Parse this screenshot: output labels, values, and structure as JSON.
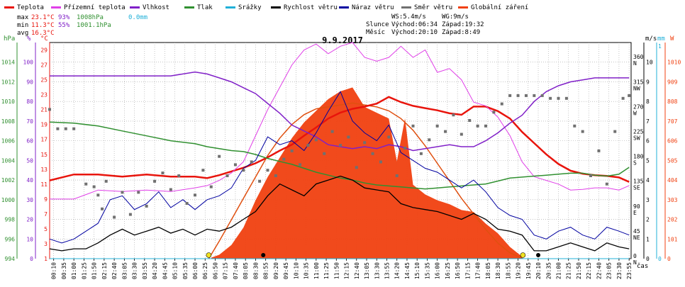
{
  "legend": [
    {
      "label": "Teplota",
      "color": "#e8140c"
    },
    {
      "label": "Přízemní teplota",
      "color": "#e040e8"
    },
    {
      "label": "Vlhkost",
      "color": "#8020c8"
    },
    {
      "label": "Tlak",
      "color": "#309030"
    },
    {
      "label": "Srážky",
      "color": "#20b0d8"
    },
    {
      "label": "Rychlost větru",
      "color": "#000000"
    },
    {
      "label": "Náraz větru",
      "color": "#0000a0"
    },
    {
      "label": "Směr větru",
      "color": "#707070"
    },
    {
      "label": "Globální záření",
      "color": "#f04010"
    }
  ],
  "stats": {
    "max": {
      "label": "max",
      "temp": "23.1°C",
      "hum": "93%",
      "press": "1008hPa",
      "rain": "0.0mm"
    },
    "min": {
      "label": "min",
      "temp": "11.3°C",
      "hum": "55%",
      "press": "1001.1hPa"
    },
    "avg": {
      "label": "avg",
      "temp": "16.3°C"
    }
  },
  "wind_info": {
    "ws": "WS:5.4m/s",
    "wg": "WG:9m/s"
  },
  "sun_info": {
    "label": "Slunce",
    "rise": "Východ:06:34",
    "set": "Západ:19:32"
  },
  "moon_info": {
    "label": "Měsíc",
    "rise": "Východ:20:10",
    "set": "Západ:8:49"
  },
  "colors": {
    "temp": "#e8140c",
    "ground": "#e040e8",
    "hum": "#8020c8",
    "press": "#309030",
    "rain": "#20b0d8",
    "wind": "#000000",
    "gust": "#0000a0",
    "dir": "#707070",
    "rad": "#f04010",
    "clearsky": "#e05010",
    "grid": "#a0a0a0",
    "sun_marker": "#f0e020",
    "moon_marker": "#000000"
  },
  "chart_data": {
    "type": "line",
    "title": "9.9.2017",
    "xlabel": "čas",
    "x_ticks": [
      "00:10",
      "00:35",
      "01:00",
      "01:25",
      "01:50",
      "02:15",
      "02:40",
      "03:05",
      "03:30",
      "03:55",
      "04:20",
      "04:45",
      "05:10",
      "05:35",
      "06:00",
      "06:25",
      "06:50",
      "07:15",
      "07:40",
      "08:05",
      "08:30",
      "08:55",
      "09:20",
      "09:45",
      "10:10",
      "10:35",
      "11:00",
      "11:25",
      "11:50",
      "12:15",
      "12:40",
      "13:05",
      "13:30",
      "13:55",
      "14:20",
      "14:45",
      "15:10",
      "15:35",
      "16:00",
      "16:25",
      "16:50",
      "17:15",
      "17:40",
      "18:05",
      "18:30",
      "18:55",
      "19:20",
      "19:45",
      "20:10",
      "20:35",
      "21:00",
      "21:25",
      "21:50",
      "22:15",
      "22:40",
      "23:05",
      "23:30",
      "23:55"
    ],
    "axes": {
      "pressure": {
        "label": "hPa",
        "ticks": [
          "994",
          "996",
          "998",
          "1000",
          "1002",
          "1004",
          "1006",
          "1008",
          "1010",
          "1012",
          "1014"
        ],
        "range": [
          994,
          1016
        ]
      },
      "humidity": {
        "label": "%",
        "ticks": [
          "0",
          "10",
          "20",
          "30",
          "40",
          "50",
          "60",
          "70",
          "80",
          "90",
          "100"
        ],
        "range": [
          0,
          110
        ]
      },
      "temperature": {
        "label": "°C",
        "ticks": [
          "1",
          "3",
          "5",
          "7",
          "9",
          "11",
          "13",
          "15",
          "17",
          "19",
          "21",
          "23",
          "25",
          "27",
          "29"
        ],
        "range": [
          1,
          30
        ]
      },
      "direction": {
        "label": "°",
        "ticks": [
          "0",
          "45",
          "90",
          "135",
          "180",
          "225",
          "270",
          "315",
          "360"
        ],
        "directions": [
          "N",
          "NE",
          "E",
          "SE",
          "S",
          "SW",
          "W",
          "NW",
          "N"
        ]
      },
      "wind": {
        "label": "m/s",
        "ticks": [
          "0",
          "1",
          "2",
          "3",
          "4",
          "5",
          "6",
          "7",
          "8",
          "9",
          "10"
        ]
      },
      "rain": {
        "label": "mm",
        "ticks": [
          "0",
          "1"
        ]
      },
      "radiation": {
        "label": "W",
        "ticks": [
          "0",
          "101",
          "202",
          "303",
          "404",
          "505",
          "606",
          "707",
          "808",
          "909",
          "1010"
        ]
      }
    },
    "sun_markers": [
      "06:34",
      "19:32"
    ],
    "moon_markers": [
      "08:49",
      "20:10"
    ],
    "series": [
      {
        "name": "Teplota",
        "axis": "temperature",
        "x": [
          "00:00",
          "01:00",
          "02:00",
          "03:00",
          "04:00",
          "05:00",
          "06:00",
          "06:30",
          "07:00",
          "07:30",
          "08:00",
          "08:30",
          "09:00",
          "09:30",
          "10:00",
          "10:30",
          "11:00",
          "11:30",
          "12:00",
          "12:30",
          "13:00",
          "13:30",
          "14:00",
          "14:30",
          "15:00",
          "15:30",
          "16:00",
          "16:30",
          "17:00",
          "17:30",
          "18:00",
          "18:30",
          "19:00",
          "19:30",
          "20:00",
          "20:30",
          "21:00",
          "21:30",
          "22:00",
          "22:30",
          "23:00",
          "23:30",
          "23:55"
        ],
        "y": [
          11.5,
          12.3,
          12.3,
          12.0,
          12.3,
          12.0,
          12.0,
          11.8,
          12.2,
          12.7,
          13.2,
          13.8,
          14.6,
          15.5,
          16.3,
          17.5,
          18.6,
          19.8,
          20.6,
          21.1,
          21.4,
          21.8,
          22.7,
          22.0,
          21.5,
          21.2,
          20.9,
          20.5,
          20.3,
          21.4,
          21.4,
          20.8,
          19.8,
          18.0,
          16.5,
          15.0,
          13.7,
          12.8,
          12.4,
          12.2,
          12.1,
          11.9,
          11.3
        ]
      },
      {
        "name": "Přízemní teplota",
        "axis": "temperature",
        "x": [
          "00:00",
          "01:00",
          "02:00",
          "03:00",
          "04:00",
          "05:00",
          "06:00",
          "06:30",
          "07:00",
          "07:30",
          "08:00",
          "08:30",
          "09:00",
          "09:30",
          "10:00",
          "10:30",
          "11:00",
          "11:30",
          "12:00",
          "12:30",
          "13:00",
          "13:30",
          "14:00",
          "14:30",
          "15:00",
          "15:30",
          "16:00",
          "16:30",
          "17:00",
          "17:30",
          "18:00",
          "18:30",
          "19:00",
          "19:30",
          "20:00",
          "20:30",
          "21:00",
          "21:30",
          "22:00",
          "22:30",
          "23:00",
          "23:30",
          "23:55"
        ],
        "y": [
          9.0,
          9.0,
          10.2,
          10.0,
          10.2,
          10.0,
          10.5,
          10.8,
          11.5,
          12.5,
          14.0,
          17.5,
          21.0,
          24.0,
          27.0,
          29.0,
          29.8,
          28.5,
          29.5,
          30.0,
          28.0,
          27.5,
          28.0,
          29.5,
          28.0,
          29.0,
          26.0,
          26.5,
          25.0,
          22.0,
          21.5,
          20.0,
          17.5,
          14.0,
          12.0,
          11.5,
          11.0,
          10.2,
          10.3,
          10.5,
          10.5,
          10.2,
          10.8
        ]
      },
      {
        "name": "Vlhkost",
        "axis": "humidity",
        "x": [
          "00:00",
          "01:00",
          "02:00",
          "03:00",
          "04:00",
          "05:00",
          "06:00",
          "06:30",
          "07:00",
          "07:30",
          "08:00",
          "08:30",
          "09:00",
          "09:30",
          "10:00",
          "10:30",
          "11:00",
          "11:30",
          "12:00",
          "12:30",
          "13:00",
          "13:30",
          "14:00",
          "14:30",
          "15:00",
          "15:30",
          "16:00",
          "16:30",
          "17:00",
          "17:30",
          "18:00",
          "18:30",
          "19:00",
          "19:30",
          "20:00",
          "20:30",
          "21:00",
          "21:30",
          "22:00",
          "22:30",
          "23:00",
          "23:30",
          "23:55"
        ],
        "y": [
          93,
          93,
          93,
          93,
          93,
          93,
          95,
          94,
          92,
          90,
          87,
          84,
          79,
          74,
          68,
          65,
          62,
          58,
          57,
          56,
          57,
          56,
          58,
          57,
          55,
          56,
          57,
          58,
          57,
          57,
          60,
          64,
          69,
          73,
          80,
          85,
          88,
          90,
          91,
          92,
          92,
          92,
          92
        ]
      },
      {
        "name": "Tlak",
        "axis": "pressure",
        "x": [
          "00:00",
          "01:00",
          "02:00",
          "03:00",
          "04:00",
          "05:00",
          "06:00",
          "06:30",
          "07:00",
          "07:30",
          "08:00",
          "08:30",
          "09:00",
          "09:30",
          "10:00",
          "10:30",
          "11:00",
          "11:30",
          "12:00",
          "12:30",
          "13:00",
          "13:30",
          "14:00",
          "14:30",
          "15:00",
          "15:30",
          "16:00",
          "16:30",
          "17:00",
          "17:30",
          "18:00",
          "18:30",
          "19:00",
          "19:30",
          "20:00",
          "20:30",
          "21:00",
          "21:30",
          "22:00",
          "22:30",
          "23:00",
          "23:30",
          "23:55"
        ],
        "y": [
          1007.9,
          1007.8,
          1007.5,
          1007.0,
          1006.5,
          1006.0,
          1005.7,
          1005.4,
          1005.2,
          1005.0,
          1004.9,
          1004.6,
          1004.2,
          1003.9,
          1003.6,
          1003.2,
          1002.8,
          1002.5,
          1002.2,
          1002.0,
          1001.7,
          1001.5,
          1001.4,
          1001.3,
          1001.2,
          1001.1,
          1001.2,
          1001.3,
          1001.4,
          1001.5,
          1001.6,
          1001.9,
          1002.2,
          1002.3,
          1002.4,
          1002.5,
          1002.6,
          1002.7,
          1002.7,
          1002.5,
          1002.4,
          1002.6,
          1003.3
        ]
      },
      {
        "name": "Srážky",
        "axis": "rain",
        "x": [
          "00:00",
          "23:55"
        ],
        "y": [
          0,
          0
        ]
      },
      {
        "name": "Rychlost větru",
        "axis": "wind",
        "x": [
          "00:00",
          "00:30",
          "01:00",
          "01:30",
          "02:00",
          "02:30",
          "03:00",
          "03:30",
          "04:00",
          "04:30",
          "05:00",
          "05:30",
          "06:00",
          "06:30",
          "07:00",
          "07:30",
          "08:00",
          "08:30",
          "09:00",
          "09:30",
          "10:00",
          "10:30",
          "11:00",
          "11:30",
          "12:00",
          "12:30",
          "13:00",
          "13:30",
          "14:00",
          "14:30",
          "15:00",
          "15:30",
          "16:00",
          "16:30",
          "17:00",
          "17:30",
          "18:00",
          "18:30",
          "19:00",
          "19:30",
          "20:00",
          "20:30",
          "21:00",
          "21:30",
          "22:00",
          "22:30",
          "23:00",
          "23:30",
          "23:55"
        ],
        "y": [
          0.5,
          0.4,
          0.5,
          0.5,
          0.8,
          1.2,
          1.5,
          1.2,
          1.4,
          1.6,
          1.3,
          1.5,
          1.2,
          1.5,
          1.4,
          1.6,
          2.0,
          2.4,
          3.2,
          3.8,
          3.5,
          3.2,
          3.8,
          4.0,
          4.2,
          4.0,
          3.6,
          3.5,
          3.4,
          2.8,
          2.6,
          2.5,
          2.4,
          2.2,
          2.0,
          2.3,
          2.0,
          1.5,
          1.4,
          1.2,
          0.4,
          0.4,
          0.6,
          0.8,
          0.6,
          0.4,
          0.8,
          0.6,
          0.5
        ]
      },
      {
        "name": "Náraz větru",
        "axis": "wind",
        "x": [
          "00:00",
          "00:30",
          "01:00",
          "01:30",
          "02:00",
          "02:30",
          "03:00",
          "03:30",
          "04:00",
          "04:30",
          "05:00",
          "05:30",
          "06:00",
          "06:30",
          "07:00",
          "07:30",
          "08:00",
          "08:30",
          "09:00",
          "09:30",
          "10:00",
          "10:30",
          "11:00",
          "11:30",
          "12:00",
          "12:30",
          "13:00",
          "13:30",
          "14:00",
          "14:30",
          "15:00",
          "15:30",
          "16:00",
          "16:30",
          "17:00",
          "17:30",
          "18:00",
          "18:30",
          "19:00",
          "19:30",
          "20:00",
          "20:30",
          "21:00",
          "21:30",
          "22:00",
          "22:30",
          "23:00",
          "23:30",
          "23:55"
        ],
        "y": [
          1.0,
          0.8,
          1.0,
          1.4,
          1.8,
          3.0,
          3.2,
          2.5,
          2.8,
          3.4,
          2.6,
          3.0,
          2.5,
          3.0,
          3.2,
          3.6,
          4.6,
          5.0,
          6.2,
          5.8,
          6.0,
          5.5,
          6.4,
          7.5,
          8.5,
          7.0,
          6.4,
          6.0,
          6.8,
          5.4,
          5.0,
          4.6,
          4.4,
          4.0,
          3.6,
          4.0,
          3.4,
          2.6,
          2.2,
          2.0,
          1.2,
          1.0,
          1.4,
          1.6,
          1.2,
          1.0,
          1.6,
          1.4,
          1.2
        ]
      },
      {
        "name": "Směr větru",
        "axis": "direction",
        "type": "scatter",
        "x": [
          "00:00",
          "00:20",
          "00:40",
          "01:00",
          "01:30",
          "01:50",
          "02:00",
          "02:10",
          "02:20",
          "02:40",
          "03:00",
          "03:20",
          "03:40",
          "04:00",
          "04:20",
          "04:40",
          "05:00",
          "05:20",
          "05:40",
          "06:00",
          "06:20",
          "06:40",
          "07:00",
          "07:20",
          "07:40",
          "08:00",
          "08:20",
          "08:40",
          "09:00",
          "09:20",
          "09:40",
          "10:00",
          "10:20",
          "10:40",
          "11:00",
          "11:20",
          "11:40",
          "12:00",
          "12:20",
          "12:40",
          "13:00",
          "13:20",
          "13:40",
          "14:00",
          "14:20",
          "14:40",
          "15:00",
          "15:20",
          "15:40",
          "16:00",
          "16:20",
          "16:40",
          "17:00",
          "17:20",
          "17:40",
          "18:00",
          "18:20",
          "18:40",
          "19:00",
          "19:20",
          "19:40",
          "20:00",
          "20:20",
          "20:40",
          "21:00",
          "21:20",
          "21:40",
          "22:00",
          "22:20",
          "22:40",
          "23:00",
          "23:20",
          "23:40",
          "23:55"
        ],
        "y": [
          270,
          235,
          235,
          235,
          135,
          130,
          115,
          90,
          140,
          75,
          120,
          80,
          120,
          95,
          140,
          155,
          125,
          150,
          100,
          115,
          160,
          130,
          185,
          150,
          170,
          160,
          175,
          140,
          160,
          150,
          180,
          195,
          170,
          205,
          215,
          190,
          230,
          205,
          220,
          165,
          210,
          190,
          175,
          220,
          150,
          200,
          240,
          190,
          215,
          240,
          230,
          260,
          225,
          250,
          240,
          240,
          265,
          280,
          295,
          295,
          295,
          295,
          295,
          290,
          290,
          290,
          240,
          230,
          150,
          195,
          135,
          230,
          290,
          295
        ]
      }
    ],
    "bands": [
      {
        "name": "Globální záření",
        "axis": "radiation",
        "x": [
          "06:40",
          "07:00",
          "07:30",
          "08:00",
          "08:30",
          "09:00",
          "09:30",
          "10:00",
          "10:30",
          "11:00",
          "11:30",
          "12:00",
          "12:30",
          "13:00",
          "13:30",
          "14:00",
          "14:20",
          "14:40",
          "15:00",
          "15:30",
          "16:00",
          "16:30",
          "17:00",
          "17:30",
          "18:00",
          "18:30",
          "19:00",
          "19:30"
        ],
        "y": [
          5,
          20,
          70,
          160,
          300,
          420,
          520,
          620,
          700,
          760,
          820,
          860,
          880,
          780,
          750,
          720,
          500,
          720,
          380,
          330,
          300,
          280,
          250,
          240,
          180,
          130,
          60,
          10
        ]
      },
      {
        "name": "clear sky",
        "axis": "radiation",
        "x": [
          "06:34",
          "07:00",
          "07:30",
          "08:00",
          "08:30",
          "09:00",
          "09:30",
          "10:00",
          "10:30",
          "11:00",
          "11:30",
          "12:00",
          "12:30",
          "13:00",
          "13:30",
          "14:00",
          "14:30",
          "15:00",
          "15:30",
          "16:00",
          "16:30",
          "17:00",
          "17:30",
          "18:00",
          "18:30",
          "19:00",
          "19:32"
        ],
        "y": [
          0,
          90,
          200,
          310,
          420,
          530,
          620,
          690,
          740,
          770,
          780,
          790,
          800,
          790,
          780,
          760,
          720,
          660,
          580,
          490,
          400,
          310,
          230,
          150,
          80,
          30,
          0
        ]
      }
    ]
  }
}
